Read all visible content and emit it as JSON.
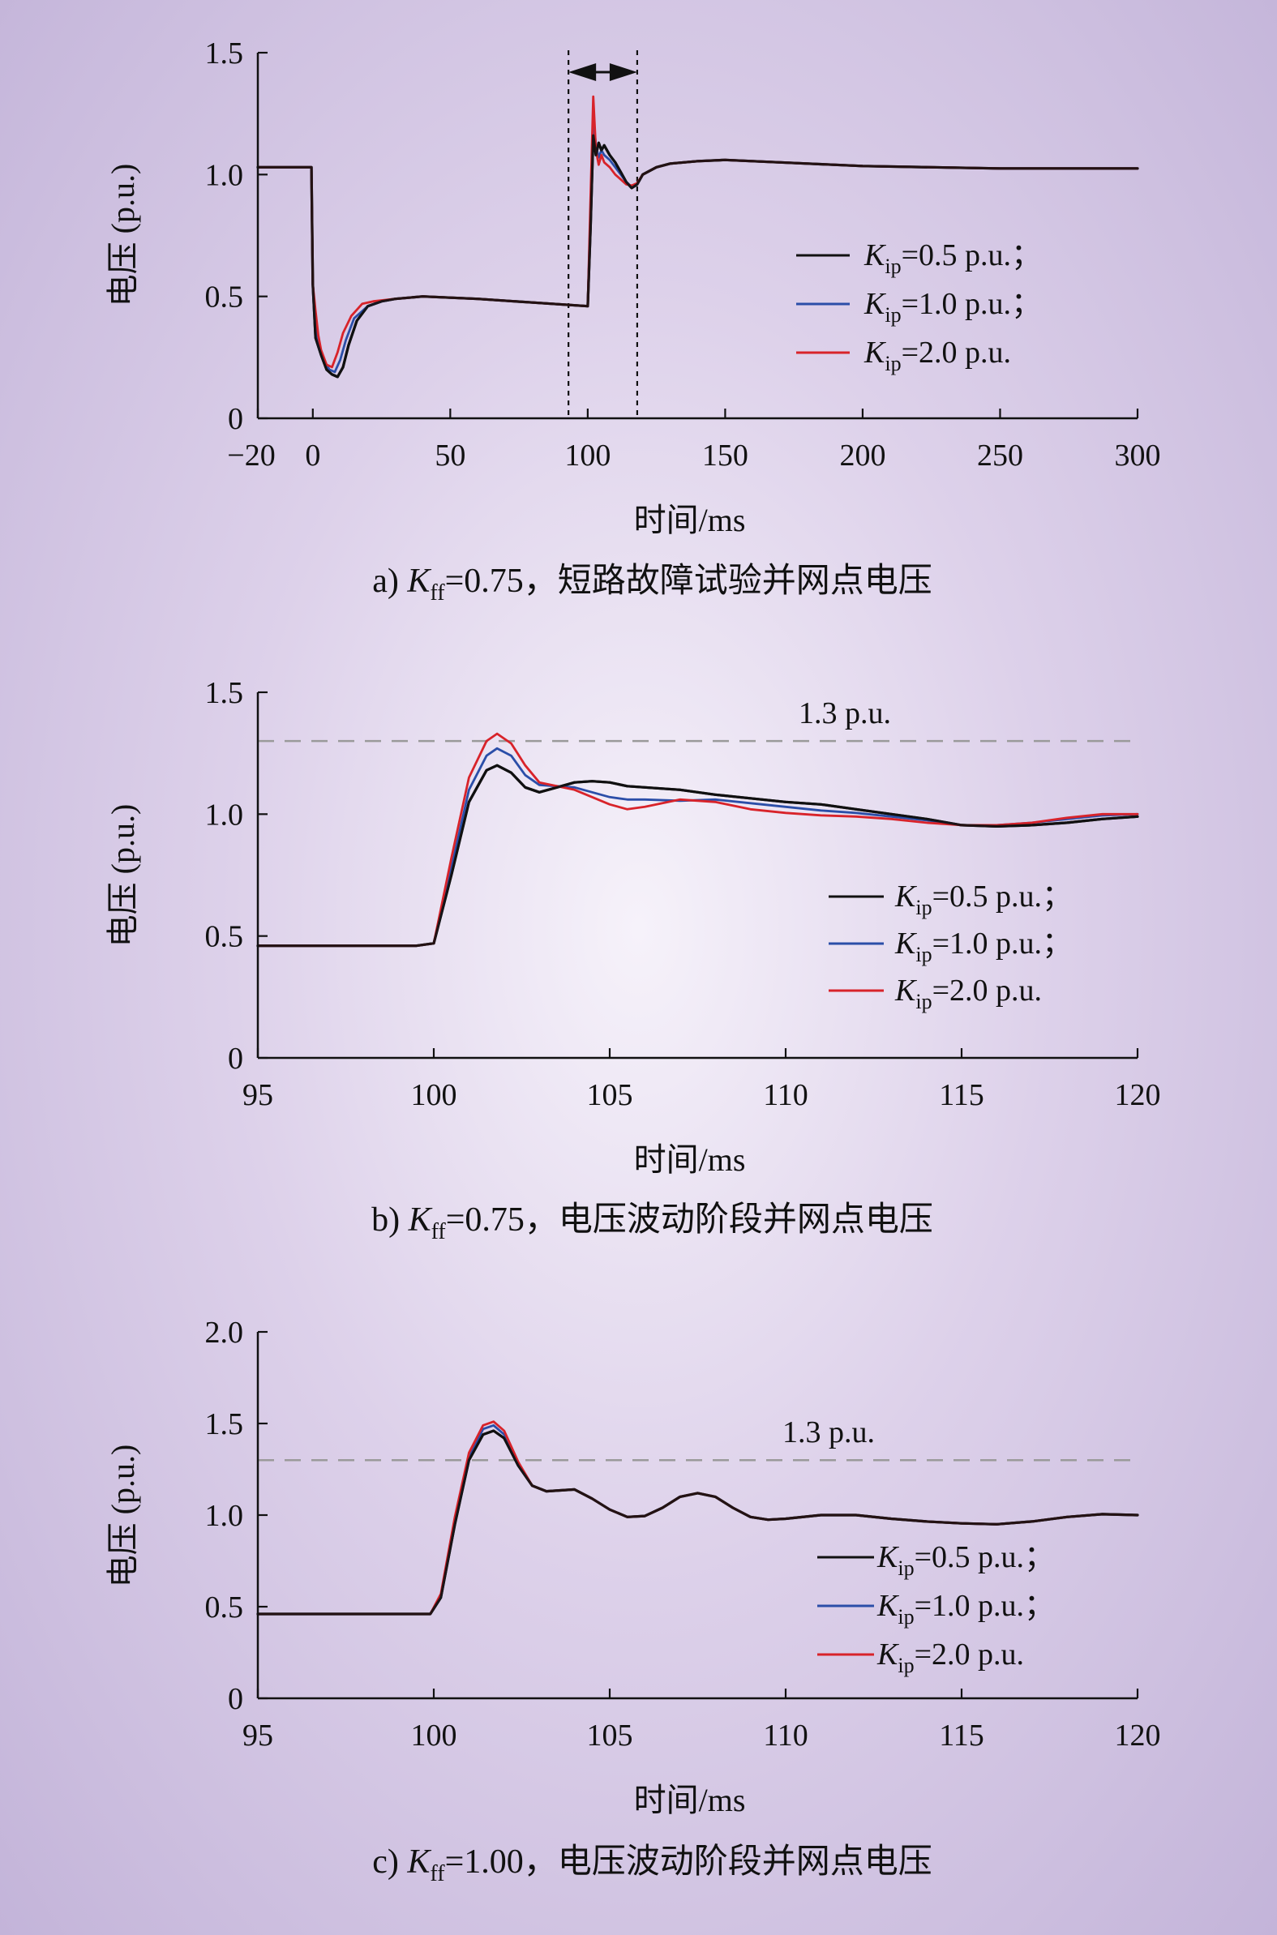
{
  "chart_data": [
    {
      "type": "line",
      "caption": {
        "prefix": "a) ",
        "var": "K",
        "sub": "ff",
        "rest": "=0.75，短路故障试验并网点电压"
      },
      "xlabel": "时间/ms",
      "ylabel": "电压 (p.u.)",
      "xlim": [
        -20,
        300
      ],
      "ylim": [
        0,
        1.5
      ],
      "xticks": [
        -20,
        0,
        50,
        100,
        150,
        200,
        250,
        300
      ],
      "xtick_labels": [
        "−20",
        "0",
        "50",
        "100",
        "150",
        "200",
        "250",
        "300"
      ],
      "yticks": [
        0,
        0.5,
        1.0,
        1.5
      ],
      "ytick_labels": [
        "0",
        "0.5",
        "1.0",
        "1.5"
      ],
      "dashed_bounds": [
        93,
        118
      ],
      "legend_position": "right",
      "series": [
        {
          "name": "Kip=0.5 p.u.;",
          "legend": {
            "sub": "ip",
            "value": "=0.5 p.u.；"
          },
          "color": "#111111",
          "x": [
            -20,
            -0.5,
            0,
            1,
            3,
            5,
            7,
            9,
            11,
            13,
            16,
            20,
            25,
            30,
            40,
            60,
            80,
            100,
            101,
            102,
            103,
            104,
            105,
            106,
            107,
            108,
            110,
            112,
            114,
            116,
            118,
            120,
            125,
            130,
            140,
            150,
            160,
            180,
            200,
            225,
            250,
            275,
            300
          ],
          "y": [
            1.03,
            1.03,
            0.55,
            0.33,
            0.26,
            0.2,
            0.18,
            0.17,
            0.21,
            0.3,
            0.4,
            0.46,
            0.48,
            0.49,
            0.5,
            0.49,
            0.475,
            0.46,
            0.78,
            1.16,
            1.08,
            1.13,
            1.1,
            1.12,
            1.1,
            1.08,
            1.05,
            1.01,
            0.97,
            0.945,
            0.96,
            1.0,
            1.03,
            1.045,
            1.055,
            1.06,
            1.055,
            1.045,
            1.035,
            1.03,
            1.025,
            1.025,
            1.025
          ]
        },
        {
          "name": "Kip=1.0 p.u.;",
          "legend": {
            "sub": "ip",
            "value": "=1.0 p.u.；"
          },
          "color": "#2b4ea8",
          "x": [
            -20,
            -0.5,
            0,
            1,
            2,
            4,
            6,
            8,
            10,
            12,
            15,
            20,
            25,
            30,
            40,
            60,
            80,
            100,
            101,
            102,
            103,
            104,
            105,
            106,
            107,
            108,
            110,
            112,
            114,
            116,
            118,
            120,
            125,
            130,
            140,
            150,
            160,
            180,
            200,
            225,
            250,
            275,
            300
          ],
          "y": [
            1.03,
            1.03,
            0.55,
            0.4,
            0.3,
            0.24,
            0.2,
            0.19,
            0.24,
            0.32,
            0.41,
            0.46,
            0.48,
            0.49,
            0.5,
            0.49,
            0.475,
            0.46,
            0.85,
            1.24,
            1.12,
            1.07,
            1.1,
            1.08,
            1.07,
            1.06,
            1.03,
            1.0,
            0.97,
            0.95,
            0.96,
            1.0,
            1.03,
            1.045,
            1.055,
            1.06,
            1.055,
            1.045,
            1.035,
            1.03,
            1.025,
            1.025,
            1.025
          ]
        },
        {
          "name": "Kip=2.0 p.u.",
          "legend": {
            "sub": "ip",
            "value": "=2.0 p.u."
          },
          "color": "#d8232a",
          "x": [
            -20,
            -0.5,
            0,
            1,
            2,
            3,
            5,
            7,
            9,
            11,
            14,
            18,
            22,
            30,
            40,
            60,
            80,
            100,
            101,
            102,
            103,
            104,
            105,
            106,
            107,
            108,
            110,
            112,
            114,
            116,
            118,
            120,
            125,
            130,
            140,
            150,
            160,
            180,
            200,
            225,
            250,
            275,
            300
          ],
          "y": [
            1.03,
            1.03,
            0.55,
            0.44,
            0.34,
            0.28,
            0.22,
            0.21,
            0.27,
            0.35,
            0.42,
            0.47,
            0.48,
            0.49,
            0.5,
            0.49,
            0.475,
            0.46,
            0.9,
            1.32,
            1.1,
            1.04,
            1.08,
            1.05,
            1.04,
            1.03,
            1.0,
            0.98,
            0.96,
            0.955,
            0.965,
            1.0,
            1.03,
            1.045,
            1.055,
            1.06,
            1.055,
            1.045,
            1.035,
            1.03,
            1.025,
            1.025,
            1.025
          ]
        }
      ]
    },
    {
      "type": "line",
      "caption": {
        "prefix": "b) ",
        "var": "K",
        "sub": "ff",
        "rest": "=0.75，电压波动阶段并网点电压"
      },
      "xlabel": "时间/ms",
      "ylabel": "电压 (p.u.)",
      "xlim": [
        95,
        120
      ],
      "ylim": [
        0,
        1.5
      ],
      "xticks": [
        95,
        100,
        105,
        110,
        115,
        120
      ],
      "xtick_labels": [
        "95",
        "100",
        "105",
        "110",
        "115",
        "120"
      ],
      "yticks": [
        0,
        0.5,
        1.0,
        1.5
      ],
      "ytick_labels": [
        "0",
        "0.5",
        "1.0",
        "1.5"
      ],
      "reference": {
        "y": 1.3,
        "label": "1.3 p.u."
      },
      "legend_position": "right",
      "series": [
        {
          "name": "Kip=0.5 p.u.;",
          "legend": {
            "sub": "ip",
            "value": "=0.5 p.u.；"
          },
          "color": "#111111",
          "x": [
            95,
            99.5,
            100,
            100.5,
            101,
            101.5,
            101.8,
            102.2,
            102.6,
            103,
            103.5,
            104,
            104.5,
            105,
            105.5,
            106,
            107,
            108,
            109,
            110,
            111,
            112,
            113,
            114,
            115,
            116,
            117,
            118,
            119,
            120
          ],
          "y": [
            0.46,
            0.46,
            0.47,
            0.75,
            1.05,
            1.18,
            1.2,
            1.17,
            1.11,
            1.09,
            1.11,
            1.13,
            1.135,
            1.13,
            1.115,
            1.11,
            1.1,
            1.08,
            1.065,
            1.05,
            1.04,
            1.02,
            1.0,
            0.98,
            0.955,
            0.95,
            0.955,
            0.965,
            0.98,
            0.99
          ]
        },
        {
          "name": "Kip=1.0 p.u.;",
          "legend": {
            "sub": "ip",
            "value": "=1.0 p.u.；"
          },
          "color": "#2b4ea8",
          "x": [
            95,
            99.5,
            100,
            100.5,
            101,
            101.5,
            101.8,
            102.2,
            102.6,
            103,
            103.5,
            104,
            104.5,
            105,
            105.5,
            106,
            107,
            108,
            109,
            110,
            111,
            112,
            113,
            114,
            115,
            116,
            117,
            118,
            119,
            120
          ],
          "y": [
            0.46,
            0.46,
            0.47,
            0.78,
            1.1,
            1.24,
            1.27,
            1.24,
            1.16,
            1.12,
            1.115,
            1.11,
            1.09,
            1.07,
            1.06,
            1.06,
            1.055,
            1.06,
            1.045,
            1.03,
            1.015,
            1.005,
            0.99,
            0.975,
            0.955,
            0.955,
            0.965,
            0.98,
            0.995,
            1.0
          ]
        },
        {
          "name": "Kip=2.0 p.u.",
          "legend": {
            "sub": "ip",
            "value": "=2.0 p.u."
          },
          "color": "#d8232a",
          "x": [
            95,
            99.5,
            100,
            100.5,
            101,
            101.5,
            101.8,
            102.2,
            102.6,
            103,
            103.5,
            104,
            104.5,
            105,
            105.5,
            106,
            107,
            108,
            109,
            110,
            111,
            112,
            113,
            114,
            115,
            116,
            117,
            118,
            119,
            120
          ],
          "y": [
            0.46,
            0.46,
            0.47,
            0.82,
            1.15,
            1.3,
            1.33,
            1.29,
            1.2,
            1.13,
            1.115,
            1.1,
            1.07,
            1.04,
            1.02,
            1.03,
            1.06,
            1.05,
            1.02,
            1.005,
            0.995,
            0.99,
            0.98,
            0.965,
            0.955,
            0.955,
            0.965,
            0.985,
            1.0,
            1.0
          ]
        }
      ]
    },
    {
      "type": "line",
      "caption": {
        "prefix": "c) ",
        "var": "K",
        "sub": "ff",
        "rest": "=1.00，电压波动阶段并网点电压"
      },
      "xlabel": "时间/ms",
      "ylabel": "电压 (p.u.)",
      "xlim": [
        95,
        120
      ],
      "ylim": [
        0,
        2.0
      ],
      "xticks": [
        95,
        100,
        105,
        110,
        115,
        120
      ],
      "xtick_labels": [
        "95",
        "100",
        "105",
        "110",
        "115",
        "120"
      ],
      "yticks": [
        0,
        0.5,
        1.0,
        1.5,
        2.0
      ],
      "ytick_labels": [
        "0",
        "0.5",
        "1.0",
        "1.5",
        "2.0"
      ],
      "reference": {
        "y": 1.3,
        "label": "1.3 p.u."
      },
      "legend_position": "right",
      "series": [
        {
          "name": "Kip=0.5 p.u.;",
          "legend": {
            "sub": "ip",
            "value": "=0.5 p.u.；"
          },
          "color": "#111111",
          "x": [
            95,
            99.9,
            100.2,
            100.6,
            101,
            101.4,
            101.7,
            102,
            102.4,
            102.8,
            103.2,
            104,
            104.5,
            105,
            105.5,
            106,
            106.5,
            107,
            107.5,
            108,
            108.5,
            109,
            109.5,
            110,
            111,
            112,
            113,
            114,
            115,
            116,
            117,
            118,
            119,
            120
          ],
          "y": [
            0.46,
            0.46,
            0.55,
            0.95,
            1.3,
            1.44,
            1.46,
            1.42,
            1.27,
            1.16,
            1.13,
            1.14,
            1.09,
            1.03,
            0.99,
            0.995,
            1.04,
            1.1,
            1.12,
            1.1,
            1.04,
            0.99,
            0.975,
            0.98,
            1.0,
            1.0,
            0.98,
            0.965,
            0.955,
            0.95,
            0.965,
            0.99,
            1.005,
            1.0
          ]
        },
        {
          "name": "Kip=1.0 p.u.;",
          "legend": {
            "sub": "ip",
            "value": "=1.0 p.u.；"
          },
          "color": "#2b4ea8",
          "x": [
            95,
            99.9,
            100.2,
            100.6,
            101,
            101.4,
            101.7,
            102,
            102.4,
            102.8,
            103.2,
            104,
            104.5,
            105,
            105.5,
            106,
            106.5,
            107,
            107.5,
            108,
            108.5,
            109,
            109.5,
            110,
            111,
            112,
            113,
            114,
            115,
            116,
            117,
            118,
            119,
            120
          ],
          "y": [
            0.46,
            0.46,
            0.56,
            0.97,
            1.32,
            1.47,
            1.49,
            1.44,
            1.28,
            1.16,
            1.13,
            1.14,
            1.09,
            1.03,
            0.99,
            0.995,
            1.04,
            1.1,
            1.12,
            1.1,
            1.04,
            0.99,
            0.975,
            0.98,
            1.0,
            1.0,
            0.98,
            0.965,
            0.955,
            0.95,
            0.965,
            0.99,
            1.005,
            1.0
          ]
        },
        {
          "name": "Kip=2.0 p.u.",
          "legend": {
            "sub": "ip",
            "value": "=2.0 p.u."
          },
          "color": "#d8232a",
          "x": [
            95,
            99.9,
            100.2,
            100.6,
            101,
            101.4,
            101.7,
            102,
            102.4,
            102.8,
            103.2,
            104,
            104.5,
            105,
            105.5,
            106,
            106.5,
            107,
            107.5,
            108,
            108.5,
            109,
            109.5,
            110,
            111,
            112,
            113,
            114,
            115,
            116,
            117,
            118,
            119,
            120
          ],
          "y": [
            0.46,
            0.46,
            0.57,
            0.99,
            1.34,
            1.49,
            1.51,
            1.46,
            1.29,
            1.16,
            1.13,
            1.14,
            1.09,
            1.03,
            0.99,
            0.995,
            1.04,
            1.1,
            1.12,
            1.1,
            1.04,
            0.99,
            0.975,
            0.98,
            1.0,
            1.0,
            0.98,
            0.965,
            0.955,
            0.95,
            0.965,
            0.99,
            1.005,
            1.0
          ]
        }
      ]
    }
  ]
}
